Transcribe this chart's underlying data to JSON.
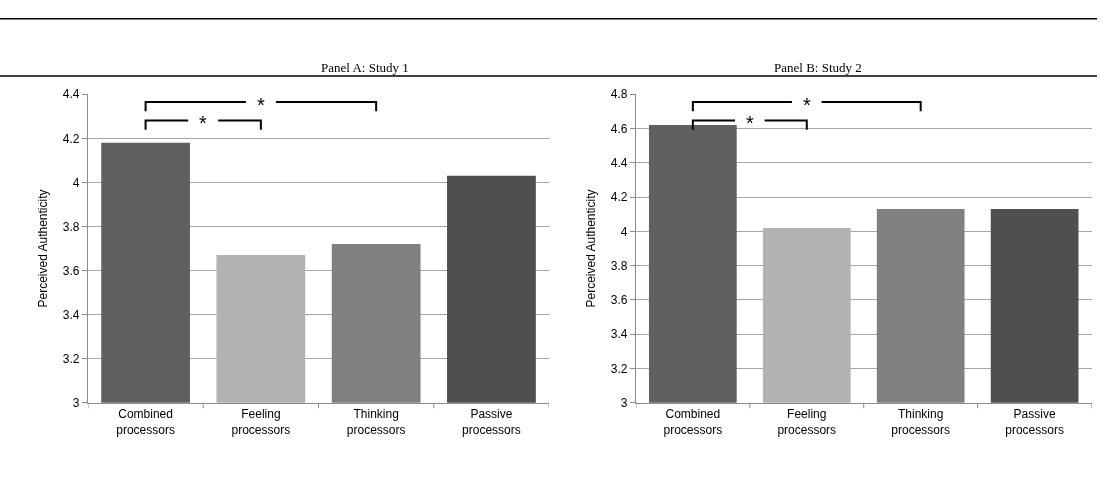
{
  "chart_data": [
    {
      "type": "bar",
      "title": "Panel A: Study 1",
      "ylabel": "Perceived Authenticity",
      "categories": [
        "Combined processors",
        "Feeling processors",
        "Thinking processors",
        "Passive processors"
      ],
      "values": [
        4.18,
        3.67,
        3.72,
        4.03
      ],
      "colors": [
        "#606060",
        "#b2b2b2",
        "#808080",
        "#4f4f4f"
      ],
      "ylim": [
        3,
        4.4
      ],
      "yticks": [
        3,
        3.2,
        3.4,
        3.6,
        3.8,
        4,
        4.2,
        4.4
      ],
      "grid": "y",
      "annotations": [
        "*",
        "*"
      ]
    },
    {
      "type": "bar",
      "title": "Panel B: Study 2",
      "ylabel": "Perceived Authenticity",
      "categories": [
        "Combined processors",
        "Feeling processors",
        "Thinking processors",
        "Passive processors"
      ],
      "values": [
        4.62,
        4.02,
        4.13,
        4.13
      ],
      "colors": [
        "#606060",
        "#b2b2b2",
        "#808080",
        "#4f4f4f"
      ],
      "ylim": [
        3,
        4.8
      ],
      "yticks": [
        3,
        3.2,
        3.4,
        3.6,
        3.8,
        4,
        4.2,
        4.4,
        4.6,
        4.8
      ],
      "grid": "y",
      "annotations": [
        "*",
        "*"
      ]
    }
  ]
}
